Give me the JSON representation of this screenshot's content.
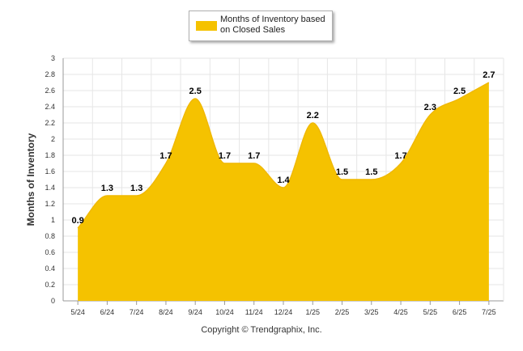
{
  "chart_data": {
    "type": "area",
    "categories": [
      "5/24",
      "6/24",
      "7/24",
      "8/24",
      "9/24",
      "10/24",
      "11/24",
      "12/24",
      "1/25",
      "2/25",
      "3/25",
      "4/25",
      "5/25",
      "6/25",
      "7/25"
    ],
    "series": [
      {
        "name": "Months of Inventory based on Closed Sales",
        "values": [
          0.9,
          1.3,
          1.3,
          1.7,
          2.5,
          1.7,
          1.7,
          1.4,
          2.2,
          1.5,
          1.5,
          1.7,
          2.3,
          2.5,
          2.7
        ],
        "color": "#f5c200"
      }
    ],
    "data_labels": [
      "0.9",
      "1.3",
      "1.3",
      "1.7",
      "2.5",
      "1.7",
      "1.7",
      "1.4",
      "2.2",
      "1.5",
      "1.5",
      "1.7",
      "2.3",
      "2.5",
      "2.7"
    ],
    "ylabel": "Months of Inventory",
    "xlabel": "",
    "ylim": [
      0,
      3
    ],
    "y_ticks": [
      "0",
      "0.2",
      "0.4",
      "0.6",
      "0.8",
      "1",
      "1.2",
      "1.4",
      "1.6",
      "1.8",
      "2",
      "2.2",
      "2.4",
      "2.6",
      "2.8",
      "3"
    ],
    "grid": true,
    "legend": "top-center",
    "smooth": true
  },
  "legend": {
    "label": "Months of Inventory based on Closed Sales"
  },
  "footer": {
    "copyright": "Copyright © Trendgraphix, Inc."
  },
  "colors": {
    "area": "#f5c200",
    "grid": "#e6e6e6",
    "axis": "#999999"
  }
}
